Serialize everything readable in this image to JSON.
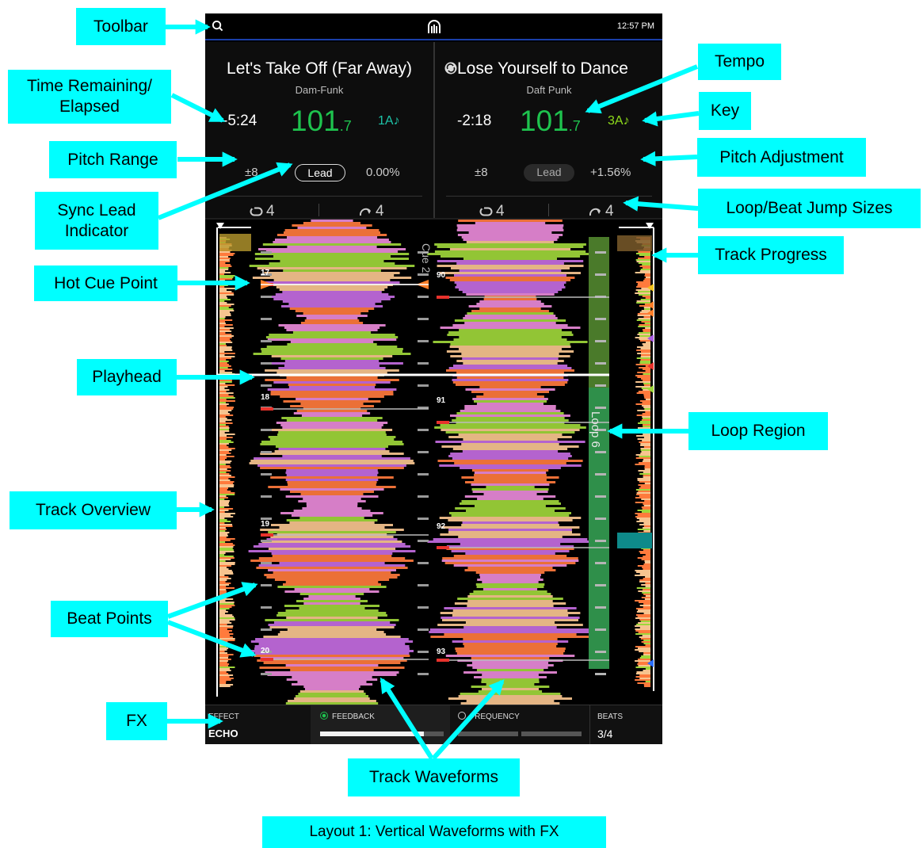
{
  "toolbar": {
    "clock": "12:57 PM"
  },
  "decks": [
    {
      "title": "Let's Take Off (Far Away)",
      "artist": "Dam-Funk",
      "time": "-5:24",
      "bpm_int": "101",
      "bpm_dec": ".7",
      "key": "1A♪",
      "key_color": "#1ec3a8",
      "pitch_range": "±8",
      "lead": "Lead",
      "lead_active": true,
      "pitch": "0.00%",
      "loop_size": "4",
      "jump_size": "4"
    },
    {
      "title": "Lose Yourself to Dance",
      "artist": "Daft Punk",
      "time": "-2:18",
      "bpm_int": "101",
      "bpm_dec": ".7",
      "key": "3A♪",
      "key_color": "#8fdc1c",
      "pitch_range": "±8",
      "lead": "Lead",
      "lead_active": false,
      "pitch": "+1.56%",
      "loop_size": "4",
      "jump_size": "4"
    }
  ],
  "waveform": {
    "left_beats": [
      "17",
      "18",
      "19",
      "20"
    ],
    "right_beats": [
      "90",
      "91",
      "92",
      "93"
    ],
    "cue_label": "Cue 2",
    "loop_label": "Loop 6",
    "colors": {
      "orange": "#ff7a3c",
      "pink": "#e889d8",
      "lime": "#9ed63a",
      "peach": "#f7c48f",
      "purple": "#c36be0",
      "loop_green": "#2f8f4a",
      "cue_orange": "#ff7f2a",
      "beat_red": "#e8322c"
    }
  },
  "fx": {
    "effect_label": "EFFECT",
    "effect_value": "ECHO",
    "feedback_label": "FEEDBACK",
    "frequency_label": "FREQUENCY",
    "feedback_level": 0.84,
    "beats_label": "BEATS",
    "beats_value": "3/4"
  },
  "callouts": {
    "toolbar": "Toolbar",
    "time": "Time Remaining/ Elapsed",
    "pitch_range": "Pitch Range",
    "sync_lead": "Sync Lead Indicator",
    "hot_cue": "Hot Cue Point",
    "playhead": "Playhead",
    "overview": "Track Overview",
    "beat_points": "Beat Points",
    "fx": "FX",
    "tempo": "Tempo",
    "key": "Key",
    "pitch_adj": "Pitch Adjustment",
    "loop_jump": "Loop/Beat Jump Sizes",
    "progress": "Track Progress",
    "loop_region": "Loop Region",
    "waveforms": "Track Waveforms"
  },
  "caption": "Layout 1: Vertical Waveforms with FX"
}
